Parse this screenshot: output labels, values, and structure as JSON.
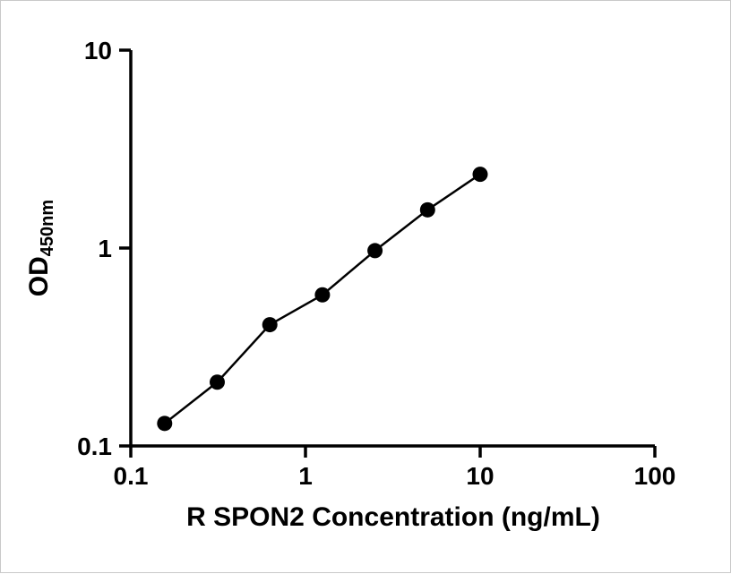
{
  "figure": {
    "background_color": "#ffffff",
    "axis_color": "#000000"
  },
  "chart_data": {
    "type": "scatter",
    "title": "",
    "xlabel": "R SPON2 Concentration (ng/mL)",
    "ylabel_main": "OD",
    "ylabel_sub": "450nm",
    "x_scale": "log",
    "y_scale": "log",
    "xlim": [
      0.1,
      100
    ],
    "ylim": [
      0.1,
      10
    ],
    "x_ticks": [
      0.1,
      1,
      10,
      100
    ],
    "x_tick_labels": [
      "0.1",
      "1",
      "10",
      "100"
    ],
    "y_ticks": [
      0.1,
      1,
      10
    ],
    "y_tick_labels": [
      "0.1",
      "1",
      "10"
    ],
    "grid": false,
    "legend": null,
    "points": [
      {
        "x": 0.15625,
        "y": 0.13
      },
      {
        "x": 0.3125,
        "y": 0.21
      },
      {
        "x": 0.625,
        "y": 0.41
      },
      {
        "x": 1.25,
        "y": 0.58
      },
      {
        "x": 2.5,
        "y": 0.97
      },
      {
        "x": 5,
        "y": 1.56
      },
      {
        "x": 10,
        "y": 2.36
      }
    ],
    "marker": {
      "shape": "circle",
      "color": "#000000",
      "radius": 8.5
    },
    "line": {
      "color": "#000000",
      "width": 2.5
    }
  }
}
